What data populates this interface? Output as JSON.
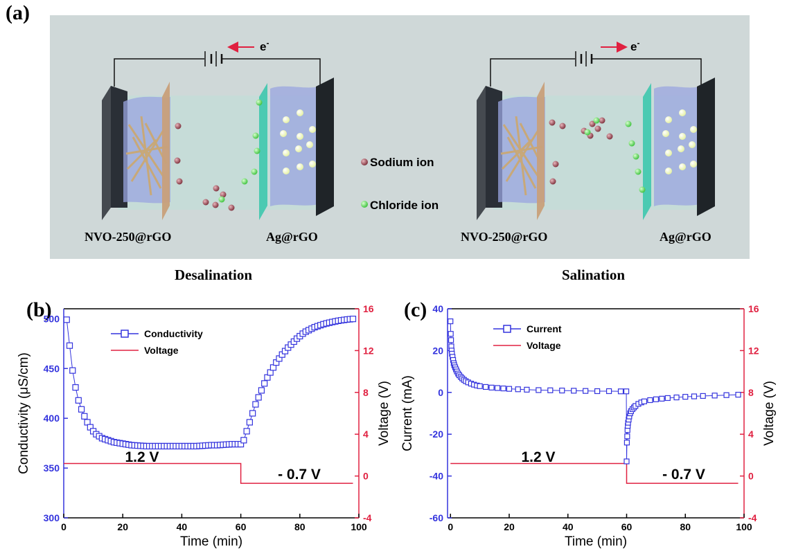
{
  "panel_a": {
    "letter": "(a)",
    "electron_label": "e",
    "electron_sup": "-",
    "legend": {
      "sodium": "Sodium ion",
      "chloride": "Chloride ion"
    },
    "left_cell": {
      "left_electrode": "NVO-250@rGO",
      "right_electrode": "Ag@rGO",
      "caption": "Desalination"
    },
    "right_cell": {
      "left_electrode": "NVO-250@rGO",
      "right_electrode": "Ag@rGO",
      "caption": "Salination"
    }
  },
  "colors": {
    "blue": "#3333dd",
    "red": "#e02040",
    "sodium": "#8a3a46",
    "chloride": "#5cdc5c",
    "membrane_left": "#c8a07a",
    "membrane_right": "#44c8b0",
    "electrode": "#333840"
  },
  "chart_data": [
    {
      "type": "scatter",
      "panel": "(b)",
      "xlabel": "Time (min)",
      "ylabel": "Conductivity  (μS/cm)",
      "y2label": "Voltage  (V)",
      "xlim": [
        0,
        100
      ],
      "ylim": [
        300,
        510
      ],
      "y2lim": [
        -4,
        16
      ],
      "xticks": [
        0,
        20,
        40,
        60,
        80,
        100
      ],
      "yticks": [
        300,
        350,
        400,
        450,
        500
      ],
      "y2ticks": [
        -4,
        0,
        4,
        8,
        12,
        16
      ],
      "legend": [
        "Conductivity",
        "Voltage"
      ],
      "annotations": [
        "1.2 V",
        "- 0.7 V"
      ],
      "series": [
        {
          "name": "Conductivity",
          "x": [
            1,
            2,
            3,
            4,
            5,
            6,
            7,
            8,
            9,
            10,
            11,
            12,
            13,
            14,
            15,
            16,
            17,
            18,
            19,
            20,
            21,
            22,
            23,
            24,
            25,
            26,
            27,
            28,
            29,
            30,
            31,
            32,
            33,
            34,
            35,
            36,
            37,
            38,
            39,
            40,
            41,
            42,
            43,
            44,
            45,
            46,
            47,
            48,
            49,
            50,
            51,
            52,
            53,
            54,
            55,
            56,
            57,
            58,
            59,
            60,
            61,
            62,
            63,
            64,
            65,
            66,
            67,
            68,
            69,
            70,
            71,
            72,
            73,
            74,
            75,
            76,
            77,
            78,
            79,
            80,
            81,
            82,
            83,
            84,
            85,
            86,
            87,
            88,
            89,
            90,
            91,
            92,
            93,
            94,
            95,
            96,
            97,
            98
          ],
          "y": [
            499,
            473,
            448,
            431,
            418,
            409,
            402,
            396,
            391,
            387,
            384,
            382,
            380,
            379,
            378,
            377,
            376,
            375.5,
            375,
            374.5,
            374,
            373.5,
            373,
            372.8,
            372.6,
            372.4,
            372.2,
            372,
            372,
            372,
            372,
            372,
            372,
            372,
            372,
            372,
            372,
            372,
            372,
            372,
            372,
            372,
            372,
            372,
            372,
            372.2,
            372.4,
            372.6,
            372.8,
            373,
            373,
            373,
            373.2,
            373.4,
            373.6,
            373.8,
            374,
            374,
            374,
            374,
            378,
            387,
            396,
            405,
            414,
            421,
            428,
            435,
            441,
            446,
            451,
            456,
            460,
            464,
            467.5,
            471,
            474,
            477,
            480,
            482.5,
            485,
            487,
            488.5,
            490,
            491.5,
            492.5,
            493.5,
            494.5,
            495.3,
            496,
            496.7,
            497.3,
            497.9,
            498.4,
            498.8,
            499.2,
            499.5,
            499.8
          ]
        },
        {
          "name": "Voltage",
          "x": [
            0,
            60,
            60,
            98
          ],
          "y": [
            1.2,
            1.2,
            -0.7,
            -0.7
          ]
        }
      ]
    },
    {
      "type": "scatter",
      "panel": "(c)",
      "xlabel": "Time (min)",
      "ylabel": "Current (mA)",
      "y2label": "Voltage  (V)",
      "xlim": [
        -1,
        100
      ],
      "ylim": [
        -60,
        40
      ],
      "y2lim": [
        -4,
        16
      ],
      "xticks": [
        0,
        20,
        40,
        60,
        80,
        100
      ],
      "yticks": [
        -60,
        -40,
        -20,
        0,
        20,
        40
      ],
      "y2ticks": [
        -4,
        0,
        4,
        8,
        12,
        16
      ],
      "legend": [
        "Current",
        "Voltage"
      ],
      "annotations": [
        "1.2 V",
        "- 0.7 V"
      ],
      "series": [
        {
          "name": "Current",
          "x": [
            0,
            0.1,
            0.2,
            0.3,
            0.4,
            0.5,
            0.7,
            0.9,
            1.1,
            1.3,
            1.6,
            1.9,
            2.2,
            2.6,
            3,
            3.5,
            4,
            4.6,
            5.2,
            6,
            7,
            8,
            9,
            10,
            12,
            14,
            16,
            18,
            20,
            23,
            26,
            30,
            34,
            38,
            42,
            46,
            50,
            54,
            58,
            59.9,
            60,
            60.1,
            60.2,
            60.3,
            60.4,
            60.5,
            60.7,
            60.9,
            61.2,
            61.5,
            62,
            62.5,
            63,
            64,
            65,
            66,
            68,
            70,
            72,
            74,
            77,
            80,
            83,
            86,
            90,
            94,
            98
          ],
          "y": [
            34,
            28,
            25,
            22,
            20,
            18.5,
            17,
            15.5,
            14,
            13,
            12,
            11,
            10,
            9,
            8.2,
            7.4,
            6.7,
            6,
            5.4,
            4.8,
            4.2,
            3.7,
            3.3,
            3,
            2.6,
            2.3,
            2.1,
            1.9,
            1.7,
            1.5,
            1.3,
            1.1,
            1,
            0.9,
            0.8,
            0.7,
            0.6,
            0.6,
            0.5,
            0.5,
            -33,
            -24,
            -21,
            -18,
            -16,
            -14.5,
            -13,
            -11.5,
            -10,
            -9,
            -8,
            -7.2,
            -6.5,
            -5.5,
            -4.8,
            -4.3,
            -3.7,
            -3.3,
            -3,
            -2.7,
            -2.4,
            -2.1,
            -1.9,
            -1.7,
            -1.5,
            -1.3,
            -1.1
          ]
        },
        {
          "name": "Voltage",
          "x": [
            0,
            60,
            60,
            98
          ],
          "y": [
            1.2,
            1.2,
            -0.7,
            -0.7
          ]
        }
      ]
    }
  ]
}
